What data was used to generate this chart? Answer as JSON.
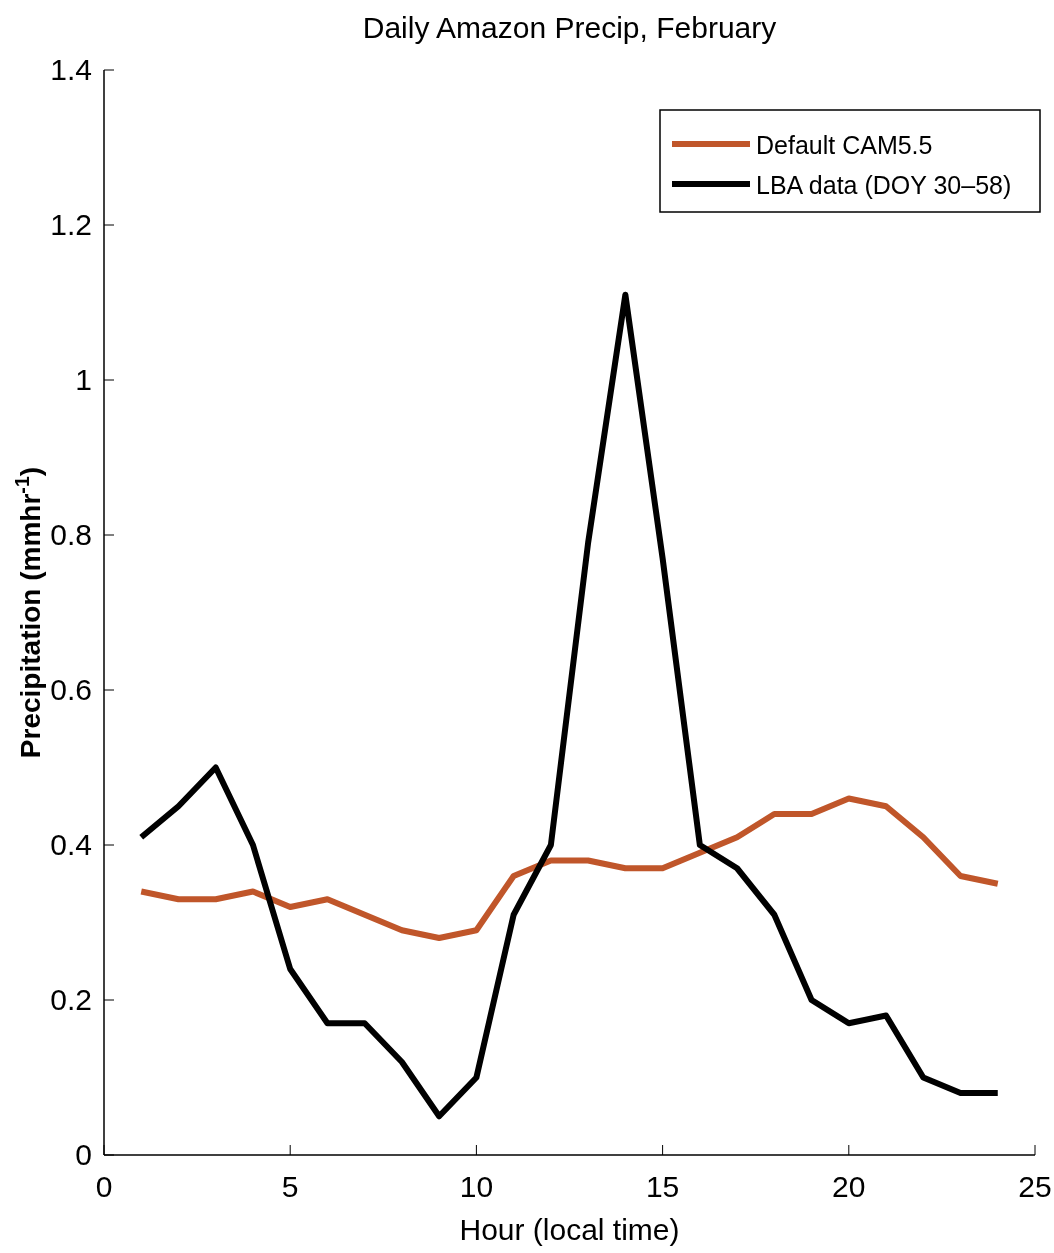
{
  "chart_data": {
    "type": "line",
    "title": "Daily Amazon Precip, February",
    "xlabel": "Hour (local time)",
    "ylabel": "Precipitation (mmhr$^{-1}$)",
    "x": [
      1,
      2,
      3,
      4,
      5,
      6,
      7,
      8,
      9,
      10,
      11,
      12,
      13,
      14,
      15,
      16,
      17,
      18,
      19,
      20,
      21,
      22,
      23,
      24
    ],
    "series": [
      {
        "name": "Default CAM5.5",
        "color": "#c0562a",
        "values": [
          0.34,
          0.33,
          0.33,
          0.34,
          0.32,
          0.33,
          0.31,
          0.29,
          0.28,
          0.29,
          0.36,
          0.38,
          0.38,
          0.37,
          0.37,
          0.39,
          0.41,
          0.44,
          0.44,
          0.46,
          0.45,
          0.41,
          0.36,
          0.35
        ]
      },
      {
        "name": "LBA data (DOY 30–58)",
        "color": "#000000",
        "values": [
          0.41,
          0.45,
          0.5,
          0.4,
          0.24,
          0.17,
          0.17,
          0.12,
          0.05,
          0.1,
          0.31,
          0.4,
          0.79,
          1.11,
          0.77,
          0.4,
          0.37,
          0.31,
          0.2,
          0.17,
          0.18,
          0.1,
          0.08,
          0.08
        ]
      }
    ],
    "xlim": [
      0,
      25
    ],
    "xticks": [
      0,
      5,
      10,
      15,
      20,
      25
    ],
    "ylim": [
      0,
      1.4
    ],
    "yticks": [
      0,
      0.2,
      0.4,
      0.6,
      0.8,
      1,
      1.2,
      1.4
    ],
    "grid": false,
    "legend": "top right",
    "marker": "none",
    "line_style": "solid"
  }
}
